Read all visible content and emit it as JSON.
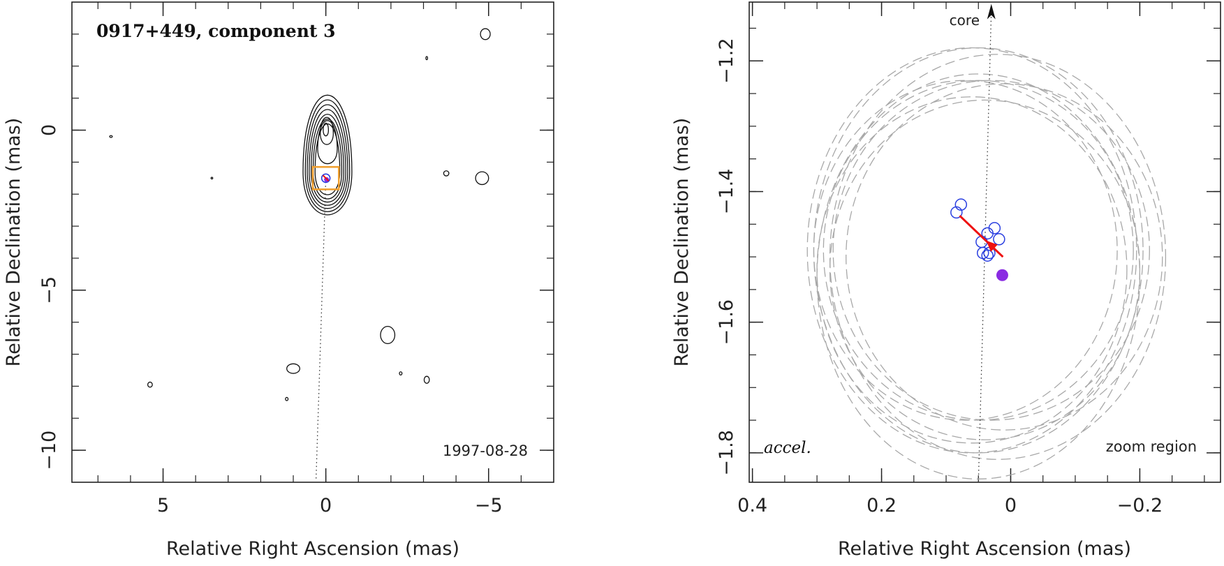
{
  "colors": {
    "axis": "#222222",
    "contour": "#111111",
    "box": "#f0a030",
    "circle": "#2a3fe0",
    "arrow": "#ee1111",
    "dot": "#8a2be2",
    "ellipse": "#a8a8a8"
  },
  "chart_data": [
    {
      "type": "contour",
      "title": "0917+449, component 3",
      "date_label": "1997-08-28",
      "xlabel": "Relative Right Ascension (mas)",
      "ylabel": "Relative Declination (mas)",
      "xlim": [
        7.8,
        -7.0
      ],
      "ylim": [
        -11.0,
        4.0
      ],
      "xticks": [
        5,
        0,
        -5
      ],
      "xtick_labels": [
        "5",
        "0",
        "−5"
      ],
      "yticks": [
        0,
        -5,
        -10
      ],
      "ytick_labels": [
        "0",
        "−5",
        "−10"
      ],
      "core": {
        "x": 0.0,
        "y": 0.0
      },
      "jet_direction_line": [
        [
          0.0,
          -1.5
        ],
        [
          0.3,
          -10.9
        ]
      ],
      "zoom_box": {
        "x_range": [
          0.4,
          -0.4
        ],
        "y_range": [
          -1.15,
          -1.85
        ]
      },
      "component_marker": {
        "x": 0.0,
        "y": -1.5
      },
      "contour_levels": [
        {
          "cx": -0.05,
          "cy": -1.3,
          "rx": 0.75,
          "ry_top": 2.4,
          "ry_bottom": 1.35
        },
        {
          "cx": -0.05,
          "cy": -1.3,
          "rx": 0.68,
          "ry_top": 2.25,
          "ry_bottom": 1.25
        },
        {
          "cx": -0.05,
          "cy": -1.3,
          "rx": 0.62,
          "ry_top": 2.1,
          "ry_bottom": 1.15
        },
        {
          "cx": -0.05,
          "cy": -1.3,
          "rx": 0.56,
          "ry_top": 1.95,
          "ry_bottom": 1.05
        },
        {
          "cx": -0.05,
          "cy": -1.3,
          "rx": 0.5,
          "ry_top": 1.8,
          "ry_bottom": 0.95
        },
        {
          "cx": -0.05,
          "cy": -1.3,
          "rx": 0.44,
          "ry_top": 1.65,
          "ry_bottom": 0.85
        },
        {
          "cx": -0.05,
          "cy": -1.3,
          "rx": 0.38,
          "ry_top": 1.5,
          "ry_bottom": 0.72
        },
        {
          "cx": -0.05,
          "cy": -0.6,
          "rx": 0.3,
          "ry_top": 0.9,
          "ry_bottom": 0.45
        },
        {
          "cx": -0.03,
          "cy": -0.1,
          "rx": 0.2,
          "ry_top": 0.5,
          "ry_bottom": 0.35
        },
        {
          "cx": 0.0,
          "cy": 0.0,
          "rx": 0.08,
          "ry_top": 0.22,
          "ry_bottom": 0.18
        }
      ],
      "noise_contours": [
        {
          "x": -4.9,
          "y": 3.0,
          "rx": 0.15,
          "ry": 0.17
        },
        {
          "x": -4.8,
          "y": -1.5,
          "rx": 0.2,
          "ry": 0.2
        },
        {
          "x": -3.7,
          "y": -1.35,
          "rx": 0.08,
          "ry": 0.08
        },
        {
          "x": -1.9,
          "y": -6.4,
          "rx": 0.22,
          "ry": 0.27
        },
        {
          "x": 1.0,
          "y": -7.45,
          "rx": 0.2,
          "ry": 0.15
        },
        {
          "x": -3.1,
          "y": -7.8,
          "rx": 0.08,
          "ry": 0.11
        },
        {
          "x": 5.4,
          "y": -7.95,
          "rx": 0.07,
          "ry": 0.08
        },
        {
          "x": -2.3,
          "y": -7.6,
          "rx": 0.04,
          "ry": 0.05
        },
        {
          "x": 1.2,
          "y": -8.4,
          "rx": 0.04,
          "ry": 0.05
        },
        {
          "x": 6.6,
          "y": -0.2,
          "rx": 0.04,
          "ry": 0.03
        },
        {
          "x": -3.1,
          "y": 2.25,
          "rx": 0.02,
          "ry": 0.05
        },
        {
          "x": 3.5,
          "y": -1.5,
          "rx": 0.02,
          "ry": 0.02
        }
      ]
    },
    {
      "type": "scatter",
      "title": "",
      "core_label": "core",
      "corner_label": "accel.",
      "region_label": "zoom region",
      "xlabel": "Relative Right Ascension (mas)",
      "ylabel": "Relative Declination (mas)",
      "xlim": [
        0.405,
        -0.325
      ],
      "ylim": [
        -1.845,
        -1.11
      ],
      "xticks": [
        0.4,
        0.2,
        0,
        -0.2
      ],
      "xtick_labels": [
        "0.4",
        "0.2",
        "0",
        "−0.2"
      ],
      "yticks": [
        -1.2,
        -1.4,
        -1.6,
        -1.8
      ],
      "ytick_labels": [
        "−1.2",
        "−1.4",
        "−1.6",
        "−1.8"
      ],
      "points": [
        {
          "x": 0.084,
          "y": -1.432
        },
        {
          "x": 0.077,
          "y": -1.42
        },
        {
          "x": 0.025,
          "y": -1.456
        },
        {
          "x": 0.036,
          "y": -1.464
        },
        {
          "x": 0.018,
          "y": -1.473
        },
        {
          "x": 0.045,
          "y": -1.477
        },
        {
          "x": 0.043,
          "y": -1.494
        },
        {
          "x": 0.033,
          "y": -1.494
        },
        {
          "x": 0.036,
          "y": -1.498
        }
      ],
      "mean_position": {
        "x": 0.013,
        "y": -1.528
      },
      "motion_vector": {
        "from": [
          0.012,
          -1.5
        ],
        "to": [
          0.079,
          -1.437
        ],
        "head": [
          0.038,
          -1.475
        ]
      },
      "core_direction_line": [
        [
          0.05,
          -1.845
        ],
        [
          0.03,
          -1.115
        ]
      ],
      "uncertainty_ellipses": [
        {
          "x": 0.07,
          "y": -1.49,
          "rx": 0.235,
          "ry": 0.26
        },
        {
          "x": 0.05,
          "y": -1.49,
          "rx": 0.24,
          "ry": 0.26
        },
        {
          "x": 0.03,
          "y": -1.49,
          "rx": 0.245,
          "ry": 0.26
        },
        {
          "x": 0.01,
          "y": -1.5,
          "rx": 0.245,
          "ry": 0.265
        },
        {
          "x": 0.06,
          "y": -1.52,
          "rx": 0.24,
          "ry": 0.265
        },
        {
          "x": 0.04,
          "y": -1.52,
          "rx": 0.24,
          "ry": 0.26
        },
        {
          "x": 0.05,
          "y": -1.53,
          "rx": 0.25,
          "ry": 0.31
        },
        {
          "x": 0.06,
          "y": -1.49,
          "rx": 0.255,
          "ry": 0.31
        },
        {
          "x": 0.05,
          "y": -1.49,
          "rx": 0.255,
          "ry": 0.31
        },
        {
          "x": 0.02,
          "y": -1.5,
          "rx": 0.26,
          "ry": 0.31
        }
      ]
    }
  ]
}
